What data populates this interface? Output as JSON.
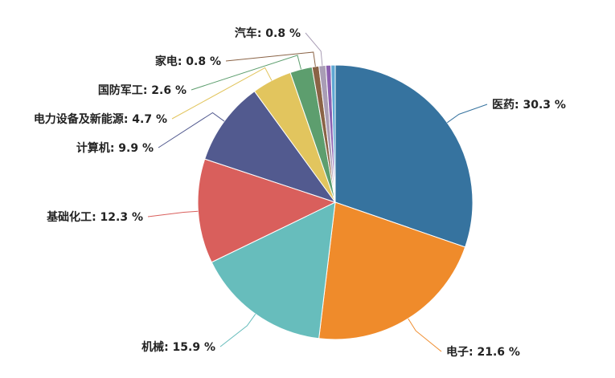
{
  "chart_data": {
    "type": "pie",
    "categories": [
      "医药",
      "电子",
      "机械",
      "基础化工",
      "计算机",
      "电力设备及新能源",
      "国防军工",
      "家电",
      "汽车",
      null,
      null
    ],
    "values": [
      30.3,
      21.6,
      15.9,
      12.3,
      9.9,
      4.7,
      2.6,
      0.8,
      0.8,
      0.6,
      0.5
    ],
    "value_labels": [
      "30.3 %",
      "21.6 %",
      "15.9 %",
      "12.3 %",
      "9.9 %",
      "4.7 %",
      "2.6 %",
      "0.8 %",
      "0.8 %",
      null,
      null
    ],
    "colors": [
      "#36739f",
      "#ef8b2b",
      "#67bdbc",
      "#d95f5c",
      "#525a8f",
      "#e2c55e",
      "#5d9e6e",
      "#8a6346",
      "#a99db5",
      "#8b5fb0",
      "#5fa8d3"
    ]
  }
}
